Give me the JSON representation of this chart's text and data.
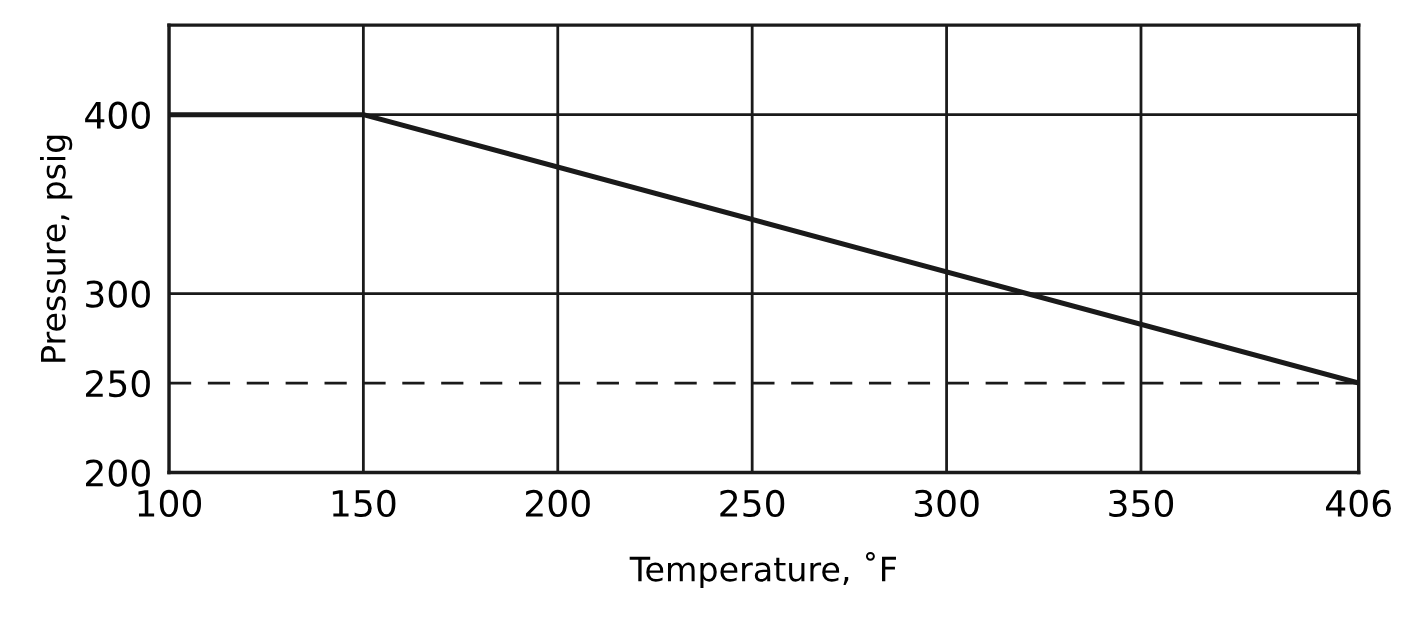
{
  "chart_data": {
    "type": "line",
    "xlabel": "Temperature, ˚F",
    "ylabel": "Pressure, psig",
    "x": [
      100,
      150,
      406
    ],
    "series": [
      {
        "color": "#1a1a1a",
        "values": [
          400,
          400,
          250
        ]
      }
    ],
    "xlim": [
      100,
      406
    ],
    "xticks": [
      100,
      150,
      200,
      250,
      300,
      350,
      406
    ],
    "ylim": [
      200,
      450
    ],
    "yticks": [
      200,
      250,
      300,
      400
    ],
    "grid": "x",
    "marker": "none",
    "line_style": "solid",
    "ref_lines": [
      {
        "axis": "y",
        "value": 300,
        "color": "#1a1a1a",
        "line_style": "solid"
      },
      {
        "axis": "y",
        "value": 400,
        "color": "#1a1a1a",
        "line_style": "solid"
      },
      {
        "axis": "y",
        "value": 250,
        "color": "#1a1a1a",
        "line_style": "dashed"
      }
    ]
  }
}
